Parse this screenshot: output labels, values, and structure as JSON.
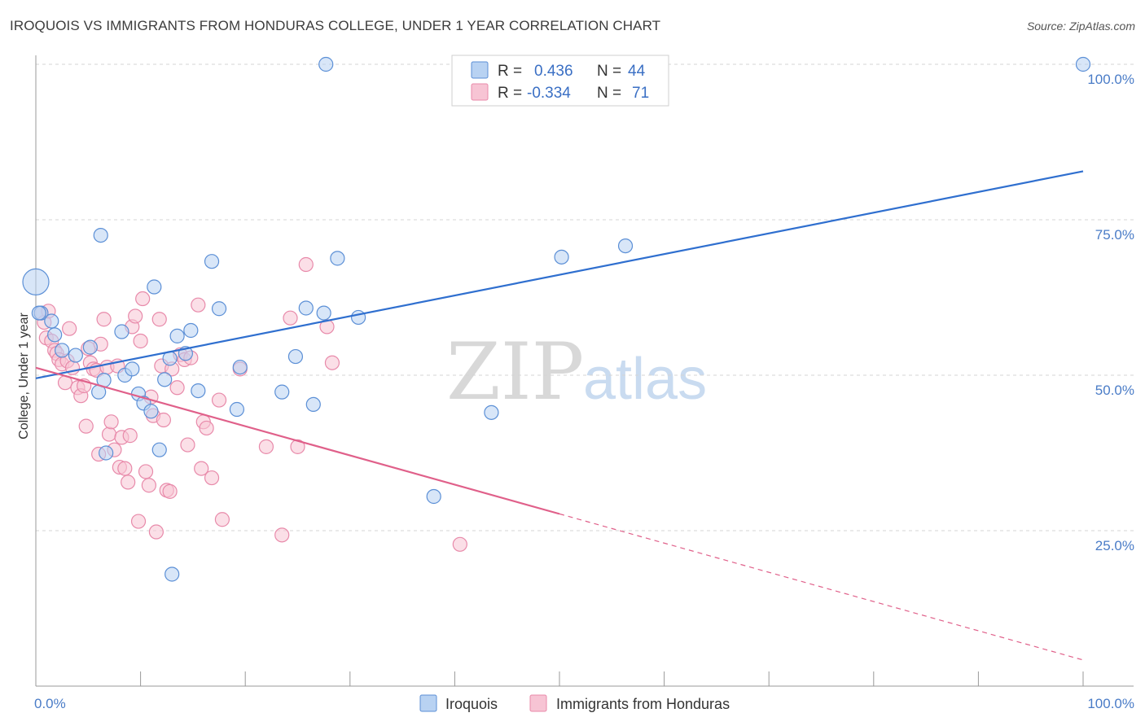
{
  "header": {
    "title": "IROQUOIS VS IMMIGRANTS FROM HONDURAS COLLEGE, UNDER 1 YEAR CORRELATION CHART",
    "source": "Source: ZipAtlas.com"
  },
  "watermark": {
    "zip": "ZIP",
    "atlas": "atlas"
  },
  "colors": {
    "iroquois_fill": "#b8d2f2",
    "iroquois_stroke": "#5b8fd6",
    "iroquois_line": "#2f6fcf",
    "honduras_fill": "#f7c4d4",
    "honduras_stroke": "#e88aaa",
    "honduras_line": "#e0608a",
    "grid": "#d5d5d5",
    "tick_label": "#4a7cc7"
  },
  "chart_data": {
    "type": "scatter",
    "title": "IROQUOIS VS IMMIGRANTS FROM HONDURAS COLLEGE, UNDER 1 YEAR CORRELATION CHART",
    "xlabel": "",
    "ylabel": "College, Under 1 year",
    "xlim": [
      0,
      100
    ],
    "ylim": [
      0,
      104
    ],
    "x_tick_labels": [
      {
        "value": 0,
        "label": "0.0%"
      },
      {
        "value": 100,
        "label": "100.0%"
      }
    ],
    "y_ticks": [
      {
        "value": 25,
        "label": "25.0%"
      },
      {
        "value": 50,
        "label": "50.0%"
      },
      {
        "value": 75,
        "label": "75.0%"
      },
      {
        "value": 100,
        "label": "100.0%"
      }
    ],
    "grid": "horizontal dashed",
    "legend_position": "top-center",
    "legend": [
      {
        "r_label": "R =",
        "r_value": "0.436",
        "n_label": "N =",
        "n_value": "44"
      },
      {
        "r_label": "R =",
        "r_value": "-0.334",
        "n_label": "N =",
        "n_value": "71"
      }
    ],
    "series": [
      {
        "name": "Iroquois",
        "trend": {
          "x0": 0,
          "y0": 49.5,
          "x1": 100,
          "y1": 82.8,
          "dashed_from": null
        },
        "points": [
          [
            0,
            65
          ],
          [
            0.5,
            60
          ],
          [
            1.5,
            58.7
          ],
          [
            1.8,
            56.5
          ],
          [
            2.5,
            54
          ],
          [
            3.8,
            53.2
          ],
          [
            5.2,
            54.5
          ],
          [
            6,
            47.3
          ],
          [
            6.2,
            72.5
          ],
          [
            6.5,
            49.2
          ],
          [
            6.7,
            37.5
          ],
          [
            8.2,
            57
          ],
          [
            8.5,
            50
          ],
          [
            9.2,
            51
          ],
          [
            9.8,
            47
          ],
          [
            10.3,
            45.5
          ],
          [
            11,
            44.2
          ],
          [
            11.3,
            64.2
          ],
          [
            11.8,
            38
          ],
          [
            12.3,
            49.3
          ],
          [
            12.8,
            52.7
          ],
          [
            13,
            18
          ],
          [
            13.5,
            56.3
          ],
          [
            14.3,
            53.5
          ],
          [
            14.8,
            57.2
          ],
          [
            15.5,
            47.5
          ],
          [
            16.8,
            68.3
          ],
          [
            17.5,
            60.7
          ],
          [
            19.2,
            44.5
          ],
          [
            19.5,
            51.3
          ],
          [
            23.5,
            47.3
          ],
          [
            24.8,
            53
          ],
          [
            25.8,
            60.8
          ],
          [
            26.5,
            45.3
          ],
          [
            27.5,
            60
          ],
          [
            27.7,
            100
          ],
          [
            28.8,
            68.8
          ],
          [
            30.8,
            59.3
          ],
          [
            38,
            30.5
          ],
          [
            43.5,
            44
          ],
          [
            50.2,
            69
          ],
          [
            56.3,
            70.8
          ],
          [
            100,
            100
          ],
          [
            0.3,
            60
          ]
        ]
      },
      {
        "name": "Immigrants from Honduras",
        "trend": {
          "x0": 0,
          "y0": 51.2,
          "x1": 100,
          "y1": 4.2,
          "dashed_from": 50
        },
        "points": [
          [
            0.5,
            60
          ],
          [
            0.8,
            58.5
          ],
          [
            1,
            56
          ],
          [
            1.5,
            55.5
          ],
          [
            1.8,
            54
          ],
          [
            2,
            53.5
          ],
          [
            2.2,
            52.5
          ],
          [
            2.5,
            51.8
          ],
          [
            2.8,
            48.8
          ],
          [
            3,
            52.3
          ],
          [
            3.2,
            57.5
          ],
          [
            3.5,
            51.2
          ],
          [
            4,
            48
          ],
          [
            4.3,
            46.7
          ],
          [
            4.6,
            48.3
          ],
          [
            4.8,
            41.8
          ],
          [
            5,
            54.3
          ],
          [
            5.2,
            52
          ],
          [
            5.5,
            51
          ],
          [
            5.8,
            50.8
          ],
          [
            6,
            37.3
          ],
          [
            6.2,
            55
          ],
          [
            6.5,
            59
          ],
          [
            6.8,
            51.3
          ],
          [
            7,
            40.5
          ],
          [
            7.2,
            42.5
          ],
          [
            7.5,
            38
          ],
          [
            7.8,
            51.5
          ],
          [
            8,
            35.2
          ],
          [
            8.2,
            40
          ],
          [
            8.5,
            35
          ],
          [
            8.8,
            32.8
          ],
          [
            9,
            40.3
          ],
          [
            9.2,
            57.8
          ],
          [
            9.5,
            59.5
          ],
          [
            9.8,
            26.5
          ],
          [
            10,
            55.5
          ],
          [
            10.2,
            62.3
          ],
          [
            10.5,
            34.5
          ],
          [
            10.8,
            32.3
          ],
          [
            11,
            46.5
          ],
          [
            11.2,
            43.5
          ],
          [
            11.5,
            24.8
          ],
          [
            11.8,
            59
          ],
          [
            12,
            51.5
          ],
          [
            12.2,
            42.8
          ],
          [
            12.5,
            31.5
          ],
          [
            12.8,
            31.3
          ],
          [
            13,
            51
          ],
          [
            13.5,
            48
          ],
          [
            13.8,
            53.3
          ],
          [
            14.2,
            52.5
          ],
          [
            14.5,
            38.8
          ],
          [
            14.8,
            52.8
          ],
          [
            15.5,
            61.3
          ],
          [
            15.8,
            35
          ],
          [
            16,
            42.5
          ],
          [
            16.3,
            41.5
          ],
          [
            16.8,
            33.5
          ],
          [
            17.5,
            46
          ],
          [
            17.8,
            26.8
          ],
          [
            19.5,
            51
          ],
          [
            22,
            38.5
          ],
          [
            23.5,
            24.3
          ],
          [
            24.3,
            59.2
          ],
          [
            25,
            38.5
          ],
          [
            25.8,
            67.8
          ],
          [
            27.8,
            57.8
          ],
          [
            28.3,
            52
          ],
          [
            40.5,
            22.8
          ],
          [
            1.2,
            60.3
          ]
        ]
      }
    ]
  },
  "bottom_legend": [
    {
      "label": "Iroquois"
    },
    {
      "label": "Immigrants from Honduras"
    }
  ]
}
